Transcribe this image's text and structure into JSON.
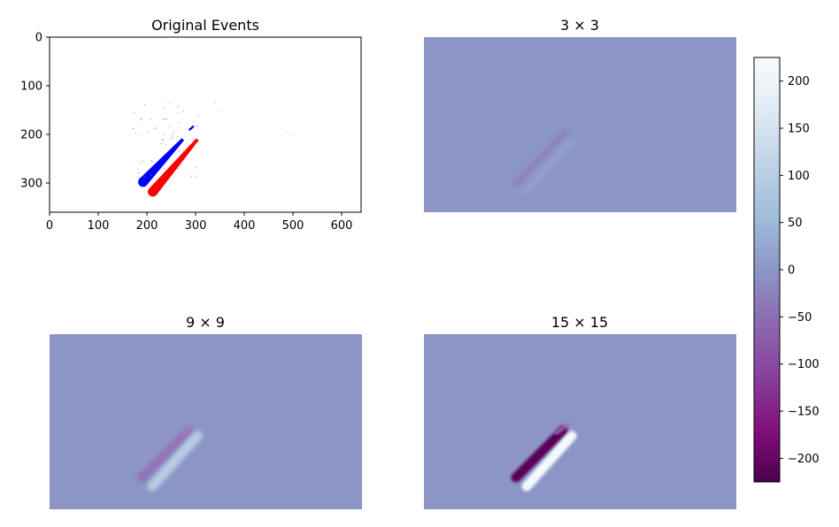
{
  "panels": [
    {
      "title": "Original Events",
      "type": "scatter",
      "xticks": [
        "0",
        "100",
        "200",
        "300",
        "400",
        "500",
        "600"
      ],
      "yticks": [
        "0",
        "100",
        "200",
        "300"
      ],
      "xlim": [
        0,
        640
      ],
      "ylim_inverted": [
        0,
        360
      ],
      "series": [
        {
          "color": "#0000ff",
          "shape": "streak",
          "from": [
            192,
            298
          ],
          "to": [
            274,
            210
          ]
        },
        {
          "color": "#ff0000",
          "shape": "streak",
          "from": [
            212,
            318
          ],
          "to": [
            304,
            210
          ]
        },
        {
          "color": "#0000ff",
          "shape": "short-streak",
          "from": [
            288,
            190
          ],
          "to": [
            296,
            183
          ]
        }
      ]
    },
    {
      "title": "3 × 3",
      "type": "heatmap",
      "peak_negative": -30,
      "peak_positive": 25
    },
    {
      "title": "9 × 9",
      "type": "heatmap",
      "peak_negative": -90,
      "peak_positive": 100
    },
    {
      "title": "15 × 15",
      "type": "heatmap",
      "peak_negative": -225,
      "peak_positive": 225
    }
  ],
  "colorbar": {
    "colormap": "BuPu",
    "range": [
      -225,
      225
    ],
    "ticks": [
      "200",
      "150",
      "100",
      "50",
      "0",
      "−50",
      "−100",
      "−150",
      "−200"
    ],
    "tick_values": [
      200,
      150,
      100,
      50,
      0,
      -50,
      -100,
      -150,
      -200
    ],
    "mid_color": "#8c96c6",
    "low_color": "#4d004b",
    "high_color": "#f7fcfd"
  },
  "chart_data": [
    {
      "type": "scatter",
      "title": "Original Events",
      "xlim": [
        0,
        640
      ],
      "ylim": [
        360,
        0
      ],
      "x_ticks": [
        0,
        100,
        200,
        300,
        400,
        500,
        600
      ],
      "y_ticks": [
        0,
        100,
        200,
        300
      ],
      "series": [
        {
          "color": "blue",
          "approx_extent": {
            "x": [
              185,
              300
            ],
            "y": [
              180,
              305
            ]
          }
        },
        {
          "color": "red",
          "approx_extent": {
            "x": [
              205,
              310
            ],
            "y": [
              205,
              320
            ]
          }
        }
      ]
    },
    {
      "type": "heatmap",
      "title": "3 × 3",
      "value_range": [
        -225,
        225
      ]
    },
    {
      "type": "heatmap",
      "title": "9 × 9",
      "value_range": [
        -225,
        225
      ]
    },
    {
      "type": "heatmap",
      "title": "15 × 15",
      "value_range": [
        -225,
        225
      ]
    }
  ]
}
